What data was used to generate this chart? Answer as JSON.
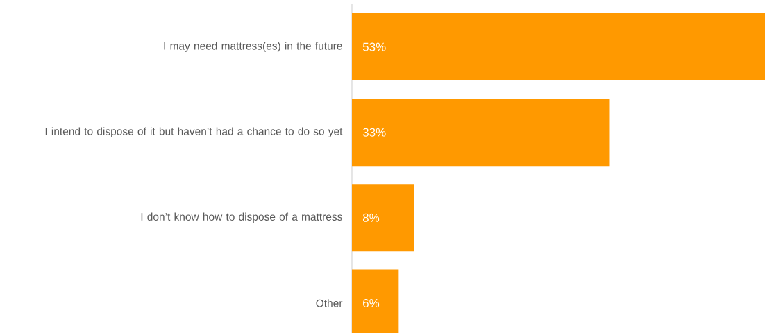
{
  "chart_data": {
    "type": "bar",
    "orientation": "horizontal",
    "categories": [
      "I may need mattress(es) in the future",
      "I intend to dispose of it but haven’t had a chance to do so yet",
      "I don’t know how to dispose of a mattress",
      "Other"
    ],
    "values": [
      53,
      33,
      8,
      6
    ],
    "color": "#ff9900",
    "value_labels": [
      "53%",
      "33%",
      "8%",
      "6%"
    ]
  }
}
